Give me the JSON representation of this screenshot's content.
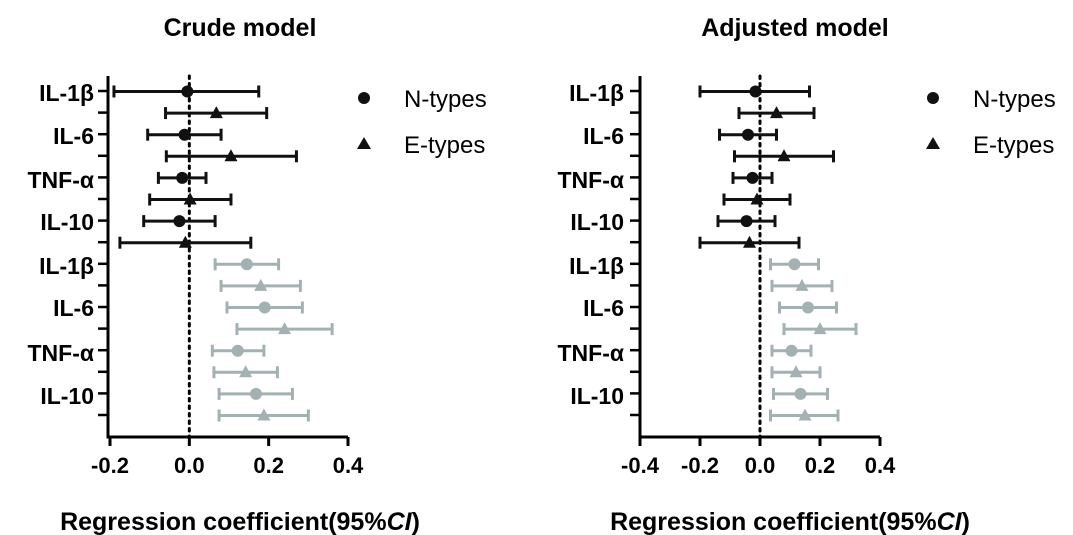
{
  "colors": {
    "black": "#111111",
    "gray": "#a3b1b3"
  },
  "chart_data": [
    {
      "type": "scatter",
      "title": "Crude model",
      "xlabel_main": "Regression coefficient(95%",
      "xlabel_ci": "CI",
      "xlabel_end": ")",
      "xlim": [
        -0.2,
        0.4
      ],
      "xticks": [
        "-0.2",
        "0.0",
        "0.2",
        "0.4"
      ],
      "tick_values": [
        -0.2,
        0.0,
        0.2,
        0.4
      ],
      "reference_line": 0,
      "legend": {
        "position": "top-right",
        "entries": [
          "N-types",
          "E-types"
        ]
      },
      "labels": [
        "IL-1β",
        "IL-6",
        "TNF-α",
        "IL-10",
        "IL-1β",
        "IL-6",
        "TNF-α",
        "IL-10"
      ],
      "rows": [
        {
          "label": "IL-1β",
          "marker": "circle",
          "group": "black",
          "est": -0.005,
          "lo": -0.19,
          "hi": 0.175
        },
        {
          "label": "",
          "marker": "triangle",
          "group": "black",
          "est": 0.068,
          "lo": -0.06,
          "hi": 0.195
        },
        {
          "label": "IL-6",
          "marker": "circle",
          "group": "black",
          "est": -0.012,
          "lo": -0.105,
          "hi": 0.08
        },
        {
          "label": "",
          "marker": "triangle",
          "group": "black",
          "est": 0.105,
          "lo": -0.058,
          "hi": 0.27
        },
        {
          "label": "TNF-α",
          "marker": "circle",
          "group": "black",
          "est": -0.018,
          "lo": -0.078,
          "hi": 0.042
        },
        {
          "label": "",
          "marker": "triangle",
          "group": "black",
          "est": 0.002,
          "lo": -0.1,
          "hi": 0.105
        },
        {
          "label": "IL-10",
          "marker": "circle",
          "group": "black",
          "est": -0.025,
          "lo": -0.115,
          "hi": 0.065
        },
        {
          "label": "",
          "marker": "triangle",
          "group": "black",
          "est": -0.01,
          "lo": -0.175,
          "hi": 0.155
        },
        {
          "label": "IL-1β",
          "marker": "circle",
          "group": "gray",
          "est": 0.145,
          "lo": 0.065,
          "hi": 0.225
        },
        {
          "label": "",
          "marker": "triangle",
          "group": "gray",
          "est": 0.18,
          "lo": 0.08,
          "hi": 0.28
        },
        {
          "label": "IL-6",
          "marker": "circle",
          "group": "gray",
          "est": 0.19,
          "lo": 0.095,
          "hi": 0.285
        },
        {
          "label": "",
          "marker": "triangle",
          "group": "gray",
          "est": 0.24,
          "lo": 0.12,
          "hi": 0.36
        },
        {
          "label": "TNF-α",
          "marker": "circle",
          "group": "gray",
          "est": 0.122,
          "lo": 0.058,
          "hi": 0.188
        },
        {
          "label": "",
          "marker": "triangle",
          "group": "gray",
          "est": 0.142,
          "lo": 0.062,
          "hi": 0.222
        },
        {
          "label": "IL-10",
          "marker": "circle",
          "group": "gray",
          "est": 0.168,
          "lo": 0.075,
          "hi": 0.26
        },
        {
          "label": "",
          "marker": "triangle",
          "group": "gray",
          "est": 0.188,
          "lo": 0.075,
          "hi": 0.3
        }
      ]
    },
    {
      "type": "scatter",
      "title": "Adjusted model",
      "xlabel_main": "Regression coefficient(95%",
      "xlabel_ci": "CI",
      "xlabel_end": ")",
      "xlim": [
        -0.4,
        0.4
      ],
      "xticks": [
        "-0.4",
        "-0.2",
        "0.0",
        "0.2",
        "0.4"
      ],
      "tick_values": [
        -0.4,
        -0.2,
        0.0,
        0.2,
        0.4
      ],
      "reference_line": 0,
      "legend": {
        "position": "top-right",
        "entries": [
          "N-types",
          "E-types"
        ]
      },
      "labels": [
        "IL-1β",
        "IL-6",
        "TNF-α",
        "IL-10",
        "IL-1β",
        "IL-6",
        "TNF-α",
        "IL-10"
      ],
      "rows": [
        {
          "label": "IL-1β",
          "marker": "circle",
          "group": "black",
          "est": -0.015,
          "lo": -0.2,
          "hi": 0.165
        },
        {
          "label": "",
          "marker": "triangle",
          "group": "black",
          "est": 0.055,
          "lo": -0.07,
          "hi": 0.18
        },
        {
          "label": "IL-6",
          "marker": "circle",
          "group": "black",
          "est": -0.04,
          "lo": -0.135,
          "hi": 0.055
        },
        {
          "label": "",
          "marker": "triangle",
          "group": "black",
          "est": 0.08,
          "lo": -0.085,
          "hi": 0.245
        },
        {
          "label": "TNF-α",
          "marker": "circle",
          "group": "black",
          "est": -0.025,
          "lo": -0.09,
          "hi": 0.04
        },
        {
          "label": "",
          "marker": "triangle",
          "group": "black",
          "est": -0.01,
          "lo": -0.12,
          "hi": 0.1
        },
        {
          "label": "IL-10",
          "marker": "circle",
          "group": "black",
          "est": -0.045,
          "lo": -0.14,
          "hi": 0.05
        },
        {
          "label": "",
          "marker": "triangle",
          "group": "black",
          "est": -0.035,
          "lo": -0.2,
          "hi": 0.13
        },
        {
          "label": "IL-1β",
          "marker": "circle",
          "group": "gray",
          "est": 0.115,
          "lo": 0.035,
          "hi": 0.195
        },
        {
          "label": "",
          "marker": "triangle",
          "group": "gray",
          "est": 0.14,
          "lo": 0.04,
          "hi": 0.24
        },
        {
          "label": "IL-6",
          "marker": "circle",
          "group": "gray",
          "est": 0.16,
          "lo": 0.065,
          "hi": 0.255
        },
        {
          "label": "",
          "marker": "triangle",
          "group": "gray",
          "est": 0.2,
          "lo": 0.08,
          "hi": 0.32
        },
        {
          "label": "TNF-α",
          "marker": "circle",
          "group": "gray",
          "est": 0.105,
          "lo": 0.04,
          "hi": 0.17
        },
        {
          "label": "",
          "marker": "triangle",
          "group": "gray",
          "est": 0.12,
          "lo": 0.04,
          "hi": 0.2
        },
        {
          "label": "IL-10",
          "marker": "circle",
          "group": "gray",
          "est": 0.135,
          "lo": 0.045,
          "hi": 0.225
        },
        {
          "label": "",
          "marker": "triangle",
          "group": "gray",
          "est": 0.15,
          "lo": 0.035,
          "hi": 0.26
        }
      ]
    }
  ]
}
